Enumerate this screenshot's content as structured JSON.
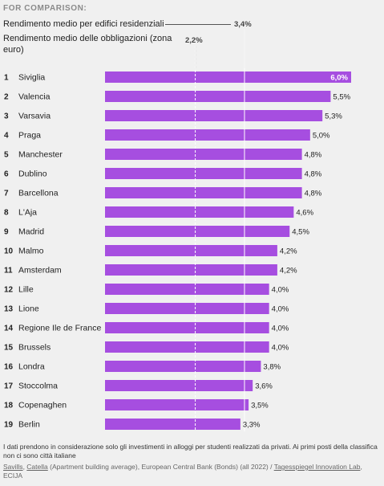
{
  "header": {
    "for_comparison": "FOR COMPARISON:",
    "ref_residential_label": "Rendimento medio per edifici residenziali",
    "ref_residential_value_text": "3,4%",
    "ref_bonds_label": "Rendimento medio delle obbligazioni (zona euro)",
    "ref_bonds_value_text": "2,2%"
  },
  "chart_data": {
    "type": "bar",
    "orientation": "horizontal",
    "bar_color": "#a64ee0",
    "xlim": [
      0,
      6.0
    ],
    "reference_lines": [
      {
        "label": "Rendimento medio per edifici residenziali",
        "value": 3.4,
        "style": "solid"
      },
      {
        "label": "Rendimento medio delle obbligazioni (zona euro)",
        "value": 2.2,
        "style": "dashed"
      }
    ],
    "rows": [
      {
        "rank": "1",
        "city": "Siviglia",
        "value": 6.0,
        "label": "6,0%"
      },
      {
        "rank": "2",
        "city": "Valencia",
        "value": 5.5,
        "label": "5,5%"
      },
      {
        "rank": "3",
        "city": "Varsavia",
        "value": 5.3,
        "label": "5,3%"
      },
      {
        "rank": "4",
        "city": "Praga",
        "value": 5.0,
        "label": "5,0%"
      },
      {
        "rank": "5",
        "city": "Manchester",
        "value": 4.8,
        "label": "4,8%"
      },
      {
        "rank": "6",
        "city": "Dublino",
        "value": 4.8,
        "label": "4,8%"
      },
      {
        "rank": "7",
        "city": "Barcellona",
        "value": 4.8,
        "label": "4,8%"
      },
      {
        "rank": "8",
        "city": "L'Aja",
        "value": 4.6,
        "label": "4,6%"
      },
      {
        "rank": "9",
        "city": "Madrid",
        "value": 4.5,
        "label": "4,5%"
      },
      {
        "rank": "10",
        "city": "Malmo",
        "value": 4.2,
        "label": "4,2%"
      },
      {
        "rank": "11",
        "city": "Amsterdam",
        "value": 4.2,
        "label": "4,2%"
      },
      {
        "rank": "12",
        "city": "Lille",
        "value": 4.0,
        "label": "4,0%"
      },
      {
        "rank": "13",
        "city": "Lione",
        "value": 4.0,
        "label": "4,0%"
      },
      {
        "rank": "14",
        "city": "Regione Ile de France",
        "value": 4.0,
        "label": "4,0%"
      },
      {
        "rank": "15",
        "city": "Brussels",
        "value": 4.0,
        "label": "4,0%"
      },
      {
        "rank": "16",
        "city": "Londra",
        "value": 3.8,
        "label": "3,8%"
      },
      {
        "rank": "17",
        "city": "Stoccolma",
        "value": 3.6,
        "label": "3,6%"
      },
      {
        "rank": "18",
        "city": "Copenaghen",
        "value": 3.5,
        "label": "3,5%"
      },
      {
        "rank": "19",
        "city": "Berlin",
        "value": 3.3,
        "label": "3,3%"
      }
    ]
  },
  "footer": {
    "note": "I dati prendono in considerazione solo gli investimenti in alloggi per studenti realizzati da privati. Ai primi posti della classifica non ci sono città italiane",
    "source_savills": "Savills",
    "source_sep1": ", ",
    "source_catella": "Catella",
    "source_mid": " (Apartment building average), European Central Bank (Bonds) (all 2022) / ",
    "source_tagesspiegel": "Tagesspiegel Innovation Lab",
    "source_end": ", ECIJA"
  }
}
